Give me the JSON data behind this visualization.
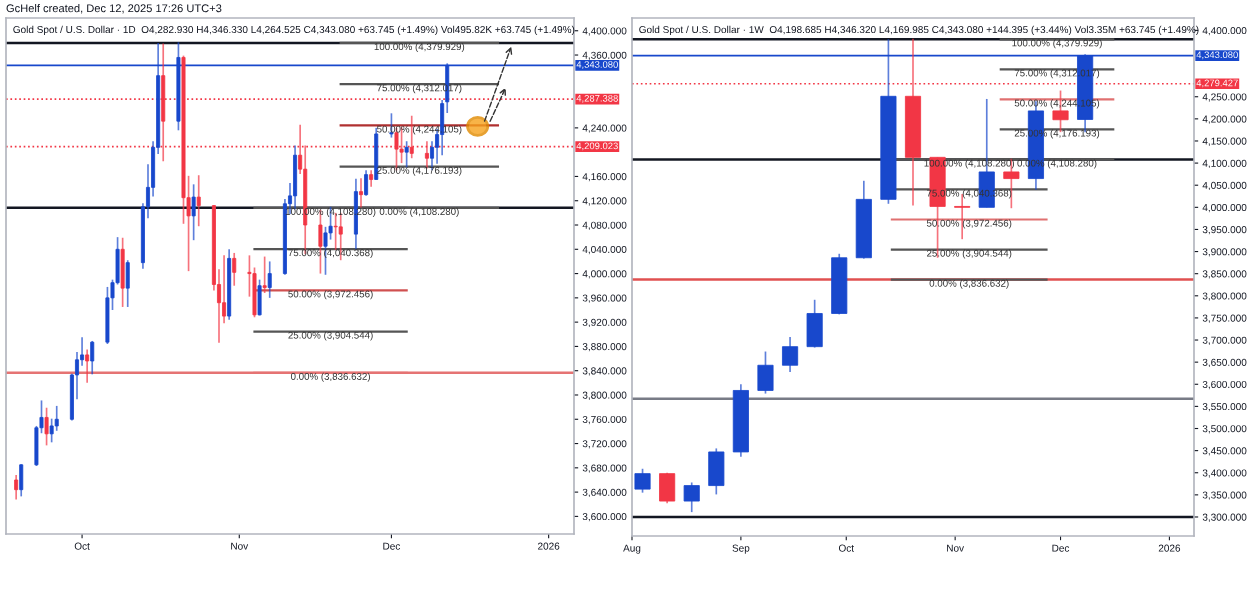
{
  "chart_data": [
    {
      "type": "candlestick",
      "title": "Gold Spot / U.S. Dollar · 1D  O4,282.930 H4,346.330 L4,264.525 C4,343.080 +63.745 (+1.49%) Vol495.82K +63.745 (+1.49%)",
      "annotations": [
        "GcHelf created, Dec 12, 2025 17:26 UTC+3"
      ],
      "x": [
        "2025-09-18",
        "2025-09-19",
        "2025-09-22",
        "2025-09-23",
        "2025-09-24",
        "2025-09-25",
        "2025-09-26",
        "2025-09-29",
        "2025-09-30",
        "2025-10-01",
        "2025-10-02",
        "2025-10-03",
        "2025-10-06",
        "2025-10-07",
        "2025-10-08",
        "2025-10-09",
        "2025-10-10",
        "2025-10-13",
        "2025-10-14",
        "2025-10-15",
        "2025-10-16",
        "2025-10-17",
        "2025-10-20",
        "2025-10-21",
        "2025-10-22",
        "2025-10-23",
        "2025-10-24",
        "2025-10-27",
        "2025-10-28",
        "2025-10-29",
        "2025-10-30",
        "2025-10-31",
        "2025-11-03",
        "2025-11-04",
        "2025-11-05",
        "2025-11-06",
        "2025-11-07",
        "2025-11-10",
        "2025-11-11",
        "2025-11-12",
        "2025-11-13",
        "2025-11-14",
        "2025-11-17",
        "2025-11-18",
        "2025-11-19",
        "2025-11-20",
        "2025-11-21",
        "2025-11-24",
        "2025-11-25",
        "2025-11-26",
        "2025-11-27",
        "2025-11-28",
        "2025-12-01",
        "2025-12-02",
        "2025-12-03",
        "2025-12-04",
        "2025-12-05",
        "2025-12-08",
        "2025-12-09",
        "2025-12-10",
        "2025-12-11",
        "2025-12-12"
      ],
      "ohlc": [
        [
          3660,
          3668,
          3628,
          3644
        ],
        [
          3644,
          3686,
          3633,
          3685
        ],
        [
          3685,
          3749,
          3683,
          3746
        ],
        [
          3746,
          3791,
          3737,
          3763
        ],
        [
          3763,
          3779,
          3717,
          3736
        ],
        [
          3736,
          3761,
          3722,
          3749
        ],
        [
          3749,
          3782,
          3741,
          3760
        ],
        [
          3760,
          3835,
          3758,
          3833
        ],
        [
          3833,
          3871,
          3793,
          3858
        ],
        [
          3858,
          3895,
          3848,
          3866
        ],
        [
          3866,
          3875,
          3820,
          3856
        ],
        [
          3856,
          3889,
          3834,
          3887
        ],
        [
          3887,
          3978,
          3884,
          3960
        ],
        [
          3960,
          3990,
          3940,
          3985
        ],
        [
          3985,
          4060,
          3982,
          4040
        ],
        [
          4040,
          4059,
          3945,
          3976
        ],
        [
          3976,
          4022,
          3945,
          4018
        ],
        [
          4018,
          4116,
          4008,
          4110
        ],
        [
          4110,
          4180,
          4091,
          4142
        ],
        [
          4142,
          4218,
          4127,
          4208
        ],
        [
          4208,
          4380,
          4197,
          4326
        ],
        [
          4326,
          4379,
          4185,
          4251
        ],
        [
          4251,
          4381,
          4236,
          4356
        ],
        [
          4356,
          4359,
          4082,
          4125
        ],
        [
          4125,
          4161,
          4004,
          4095
        ],
        [
          4095,
          4147,
          4055,
          4126
        ],
        [
          4126,
          4162,
          4078,
          4112
        ],
        [
          4112,
          4113,
          3972,
          3982
        ],
        [
          3982,
          4007,
          3886,
          3952
        ],
        [
          3952,
          4030,
          3918,
          3930
        ],
        [
          3930,
          4040,
          3924,
          4025
        ],
        [
          4025,
          4034,
          3980,
          4002
        ],
        [
          4002,
          4030,
          3962,
          4000
        ],
        [
          4000,
          4010,
          3928,
          3932
        ],
        [
          3932,
          3990,
          3931,
          3980
        ],
        [
          3980,
          4028,
          3968,
          3977
        ],
        [
          3977,
          4020,
          3960,
          4000
        ],
        [
          4000,
          4123,
          3998,
          4115
        ],
        [
          4115,
          4149,
          4098,
          4128
        ],
        [
          4128,
          4211,
          4106,
          4195
        ],
        [
          4195,
          4245,
          4164,
          4172
        ],
        [
          4172,
          4211,
          4032,
          4080
        ],
        [
          4080,
          4105,
          4000,
          4045
        ],
        [
          4045,
          4077,
          3998,
          4067
        ],
        [
          4067,
          4110,
          4056,
          4078
        ],
        [
          4078,
          4100,
          4039,
          4077
        ],
        [
          4077,
          4100,
          4022,
          4065
        ],
        [
          4065,
          4156,
          4040,
          4135
        ],
        [
          4135,
          4157,
          4109,
          4130
        ],
        [
          4130,
          4170,
          4128,
          4163
        ],
        [
          4163,
          4170,
          4143,
          4155
        ],
        [
          4155,
          4240,
          4155,
          4230
        ],
        [
          4230,
          4264,
          4224,
          4232
        ],
        [
          4232,
          4240,
          4170,
          4205
        ],
        [
          4205,
          4241,
          4182,
          4200
        ],
        [
          4200,
          4218,
          4175,
          4208
        ],
        [
          4208,
          4260,
          4190,
          4198
        ],
        [
          4198,
          4218,
          4173,
          4190
        ],
        [
          4190,
          4218,
          4170,
          4208
        ],
        [
          4208,
          4238,
          4181,
          4229
        ],
        [
          4229,
          4286,
          4195,
          4280
        ],
        [
          4282.93,
          4346.33,
          4264.525,
          4343.08
        ]
      ],
      "colors": [
        "#f23645",
        "#1848cc",
        "#1848cc",
        "#1848cc",
        "#f23645",
        "#1848cc",
        "#1848cc",
        "#1848cc",
        "#1848cc",
        "#1848cc",
        "#f23645",
        "#1848cc",
        "#1848cc",
        "#1848cc",
        "#1848cc",
        "#f23645",
        "#1848cc",
        "#1848cc",
        "#1848cc",
        "#1848cc",
        "#1848cc",
        "#f23645",
        "#1848cc",
        "#f23645",
        "#f23645",
        "#1848cc",
        "#f23645",
        "#f23645",
        "#f23645",
        "#f23645",
        "#1848cc",
        "#f23645",
        "#f23645",
        "#f23645",
        "#1848cc",
        "#f23645",
        "#1848cc",
        "#1848cc",
        "#1848cc",
        "#1848cc",
        "#f23645",
        "#f23645",
        "#f23645",
        "#1848cc",
        "#1848cc",
        "#f23645",
        "#f23645",
        "#1848cc",
        "#f23645",
        "#1848cc",
        "#f23645",
        "#1848cc",
        "#1848cc",
        "#f23645",
        "#f23645",
        "#1848cc",
        "#f23645",
        "#f23645",
        "#1848cc",
        "#1848cc",
        "#1848cc",
        "#1848cc"
      ],
      "xlim": [
        "2025-09-16",
        "2026-01-06"
      ],
      "xticks": [
        {
          "value": "2025-10-01",
          "label": "Oct"
        },
        {
          "value": "2025-11-01",
          "label": "Nov"
        },
        {
          "value": "2025-12-01",
          "label": "Dec"
        },
        {
          "value": "2026-01-01",
          "label": "2026"
        }
      ],
      "ylim": [
        3571,
        4421
      ],
      "yticks": [
        {
          "value": 3600,
          "label": "3,600.000"
        },
        {
          "value": 3640,
          "label": "3,640.000"
        },
        {
          "value": 3680,
          "label": "3,680.000"
        },
        {
          "value": 3720,
          "label": "3,720.000"
        },
        {
          "value": 3760,
          "label": "3,760.000"
        },
        {
          "value": 3800,
          "label": "3,800.000"
        },
        {
          "value": 3840,
          "label": "3,840.000"
        },
        {
          "value": 3880,
          "label": "3,880.000"
        },
        {
          "value": 3920,
          "label": "3,920.000"
        },
        {
          "value": 3960,
          "label": "3,960.000"
        },
        {
          "value": 4000,
          "label": "4,000.000"
        },
        {
          "value": 4040,
          "label": "4,040.000"
        },
        {
          "value": 4080,
          "label": "4,080.000"
        },
        {
          "value": 4120,
          "label": "4,120.000"
        },
        {
          "value": 4160,
          "label": "4,160.000"
        },
        {
          "value": 4240,
          "label": "4,240.000"
        },
        {
          "value": 4360,
          "label": "4,360.000"
        },
        {
          "value": 4400,
          "label": "4,400.000"
        }
      ],
      "ref_lines": [
        {
          "axis": "y",
          "value": 4379.929,
          "label": null,
          "color": "#131722",
          "line_style": "solid"
        },
        {
          "axis": "y",
          "value": 4108.28,
          "label": null,
          "color": "#131722",
          "line_style": "solid"
        },
        {
          "axis": "y",
          "value": 3836.632,
          "label": null,
          "color": "#e57373",
          "line_style": "solid"
        },
        {
          "axis": "y",
          "value": 4343.08,
          "label": "4,343.080",
          "color": "#1848cc",
          "line_style": "solid"
        },
        {
          "axis": "y",
          "value": 4287.388,
          "label": "4,287.388",
          "color": "#f23645",
          "line_style": "dotted"
        },
        {
          "axis": "y",
          "value": 4209.023,
          "label": "4,209.023",
          "color": "#f23645",
          "line_style": "dotted"
        }
      ],
      "series": [
        {
          "type": "line",
          "name": "100.00% (4,108.280)",
          "color": "#555555",
          "x": [
            "2025-11-04",
            "2025-12-04"
          ],
          "values": [
            4108.28,
            4108.28
          ]
        },
        {
          "type": "line",
          "name": "75.00% (4,040.368)",
          "color": "#555555",
          "x": [
            "2025-11-04",
            "2025-12-04"
          ],
          "values": [
            4040.368,
            4040.368
          ]
        },
        {
          "type": "line",
          "name": "50.00% (3,972.456)",
          "color": "#d05050",
          "x": [
            "2025-11-04",
            "2025-12-04"
          ],
          "values": [
            3972.456,
            3972.456
          ]
        },
        {
          "type": "line",
          "name": "25.00% (3,904.544)",
          "color": "#555555",
          "x": [
            "2025-11-04",
            "2025-12-04"
          ],
          "values": [
            3904.544,
            3904.544
          ]
        },
        {
          "type": "line",
          "name": "0.00% (3,836.632)",
          "color": "#e57373",
          "x": [
            "2025-11-04",
            "2025-12-04"
          ],
          "values": [
            3836.632,
            3836.632
          ]
        },
        {
          "type": "line",
          "name": "100.00% (4,379.929)",
          "color": "#555555",
          "x": [
            "2025-11-21",
            "2025-12-22"
          ],
          "values": [
            4379.929,
            4379.929
          ]
        },
        {
          "type": "line",
          "name": "75.00% (4,312.017)",
          "color": "#555555",
          "x": [
            "2025-11-21",
            "2025-12-22"
          ],
          "values": [
            4312.017,
            4312.017
          ]
        },
        {
          "type": "line",
          "name": "50.00% (4,244.105)",
          "color": "#b03030",
          "x": [
            "2025-11-21",
            "2025-12-22"
          ],
          "values": [
            4244.105,
            4244.105
          ]
        },
        {
          "type": "line",
          "name": "25.00% (4,176.193)",
          "color": "#555555",
          "x": [
            "2025-11-21",
            "2025-12-22"
          ],
          "values": [
            4176.193,
            4176.193
          ]
        },
        {
          "type": "line",
          "name": "0.00% (4,108.280)",
          "color": "#555555",
          "x": [
            "2025-11-21",
            "2025-12-22"
          ],
          "values": [
            4108.28,
            4108.28
          ]
        }
      ]
    },
    {
      "type": "candlestick",
      "title": "Gold Spot / U.S. Dollar · 1W  O4,198.685 H4,346.320 L4,169.985 C4,343.080 +144.395 (+3.44%) Vol3.35M +63.745 (+1.49%)",
      "x": [
        "2025-08-04",
        "2025-08-11",
        "2025-08-18",
        "2025-08-25",
        "2025-09-01",
        "2025-09-08",
        "2025-09-15",
        "2025-09-22",
        "2025-09-29",
        "2025-10-06",
        "2025-10-13",
        "2025-10-20",
        "2025-10-27",
        "2025-11-03",
        "2025-11-10",
        "2025-11-17",
        "2025-11-24",
        "2025-12-01",
        "2025-12-08"
      ],
      "ohlc": [
        [
          3363,
          3409,
          3355,
          3398
        ],
        [
          3398,
          3400,
          3331,
          3336
        ],
        [
          3336,
          3378,
          3311,
          3371
        ],
        [
          3371,
          3455,
          3351,
          3447
        ],
        [
          3447,
          3600,
          3436,
          3586
        ],
        [
          3586,
          3674,
          3579,
          3643
        ],
        [
          3643,
          3707,
          3628,
          3685
        ],
        [
          3685,
          3791,
          3683,
          3760
        ],
        [
          3760,
          3895,
          3758,
          3886
        ],
        [
          3886,
          4060,
          3884,
          4018
        ],
        [
          4018,
          4380,
          4008,
          4251
        ],
        [
          4251,
          4381,
          4004,
          4113
        ],
        [
          4113,
          4113,
          3886,
          4002
        ],
        [
          4002,
          4030,
          3928,
          4000
        ],
        [
          4000,
          4245,
          4000,
          4080
        ],
        [
          4080,
          4110,
          3998,
          4065
        ],
        [
          4065,
          4240,
          4040,
          4218
        ],
        [
          4218,
          4264,
          4170,
          4198
        ],
        [
          4198.685,
          4346.32,
          4169.985,
          4343.08
        ]
      ],
      "colors": [
        "#1848cc",
        "#f23645",
        "#1848cc",
        "#1848cc",
        "#1848cc",
        "#1848cc",
        "#1848cc",
        "#1848cc",
        "#1848cc",
        "#1848cc",
        "#1848cc",
        "#f23645",
        "#f23645",
        "#f23645",
        "#1848cc",
        "#f23645",
        "#1848cc",
        "#f23645",
        "#1848cc"
      ],
      "xlim": [
        "2025-08-01",
        "2026-01-08"
      ],
      "xticks": [
        {
          "value": "2025-08-01",
          "label": "Aug"
        },
        {
          "value": "2025-09-01",
          "label": "Sep"
        },
        {
          "value": "2025-10-01",
          "label": "Oct"
        },
        {
          "value": "2025-11-01",
          "label": "Nov"
        },
        {
          "value": "2025-12-01",
          "label": "Dec"
        },
        {
          "value": "2026-01-01",
          "label": "2026"
        }
      ],
      "ylim": [
        3257,
        4428
      ],
      "yticks": [
        {
          "value": 3300,
          "label": "3,300.000"
        },
        {
          "value": 3350,
          "label": "3,350.000"
        },
        {
          "value": 3400,
          "label": "3,400.000"
        },
        {
          "value": 3450,
          "label": "3,450.000"
        },
        {
          "value": 3500,
          "label": "3,500.000"
        },
        {
          "value": 3550,
          "label": "3,550.000"
        },
        {
          "value": 3600,
          "label": "3,600.000"
        },
        {
          "value": 3650,
          "label": "3,650.000"
        },
        {
          "value": 3700,
          "label": "3,700.000"
        },
        {
          "value": 3750,
          "label": "3,750.000"
        },
        {
          "value": 3800,
          "label": "3,800.000"
        },
        {
          "value": 3850,
          "label": "3,850.000"
        },
        {
          "value": 3900,
          "label": "3,900.000"
        },
        {
          "value": 3950,
          "label": "3,950.000"
        },
        {
          "value": 4000,
          "label": "4,000.000"
        },
        {
          "value": 4050,
          "label": "4,050.000"
        },
        {
          "value": 4100,
          "label": "4,100.000"
        },
        {
          "value": 4150,
          "label": "4,150.000"
        },
        {
          "value": 4200,
          "label": "4,200.000"
        },
        {
          "value": 4250,
          "label": "4,250.000"
        },
        {
          "value": 4400,
          "label": "4,400.000"
        }
      ],
      "ref_lines": [
        {
          "axis": "y",
          "value": 4379.929,
          "label": null,
          "color": "#131722",
          "line_style": "solid"
        },
        {
          "axis": "y",
          "value": 4108.28,
          "label": null,
          "color": "#131722",
          "line_style": "solid"
        },
        {
          "axis": "y",
          "value": 3836.632,
          "label": null,
          "color": "#e05050",
          "line_style": "solid"
        },
        {
          "axis": "y",
          "value": 3567,
          "label": null,
          "color": "#787b86",
          "line_style": "solid"
        },
        {
          "axis": "y",
          "value": 3300,
          "label": null,
          "color": "#131722",
          "line_style": "solid"
        },
        {
          "axis": "y",
          "value": 4343.08,
          "label": "4,343.080",
          "color": "#1848cc",
          "line_style": "solid"
        },
        {
          "axis": "y",
          "value": 4279.427,
          "label": "4,279.427",
          "color": "#f23645",
          "line_style": "dotted"
        }
      ],
      "series": [
        {
          "type": "line",
          "name": "100.00% (4,108.280)",
          "color": "#555555",
          "x": [
            "2025-10-14",
            "2025-11-27"
          ],
          "values": [
            4108.28,
            4108.28
          ]
        },
        {
          "type": "line",
          "name": "75.00% (4,040.368)",
          "color": "#555555",
          "x": [
            "2025-10-14",
            "2025-11-27"
          ],
          "values": [
            4040.368,
            4040.368
          ]
        },
        {
          "type": "line",
          "name": "50.00% (3,972.456)",
          "color": "#e07070",
          "x": [
            "2025-10-14",
            "2025-11-27"
          ],
          "values": [
            3972.456,
            3972.456
          ]
        },
        {
          "type": "line",
          "name": "25.00% (3,904.544)",
          "color": "#555555",
          "x": [
            "2025-10-14",
            "2025-11-27"
          ],
          "values": [
            3904.544,
            3904.544
          ]
        },
        {
          "type": "line",
          "name": "0.00% (3,836.632)",
          "color": "#555555",
          "x": [
            "2025-10-14",
            "2025-11-27"
          ],
          "values": [
            3836.632,
            3836.632
          ]
        },
        {
          "type": "line",
          "name": "100.00% (4,379.929)",
          "color": "#555555",
          "x": [
            "2025-11-14",
            "2025-12-16"
          ],
          "values": [
            4379.929,
            4379.929
          ]
        },
        {
          "type": "line",
          "name": "75.00% (4,312.017)",
          "color": "#555555",
          "x": [
            "2025-11-14",
            "2025-12-16"
          ],
          "values": [
            4312.017,
            4312.017
          ]
        },
        {
          "type": "line",
          "name": "50.00% (4,244.105)",
          "color": "#e07070",
          "x": [
            "2025-11-14",
            "2025-12-16"
          ],
          "values": [
            4244.105,
            4244.105
          ]
        },
        {
          "type": "line",
          "name": "25.00% (4,176.193)",
          "color": "#555555",
          "x": [
            "2025-11-14",
            "2025-12-16"
          ],
          "values": [
            4176.193,
            4176.193
          ]
        },
        {
          "type": "line",
          "name": "0.00% (4,108.280)",
          "color": "#555555",
          "x": [
            "2025-11-14",
            "2025-12-16"
          ],
          "values": [
            4108.28,
            4108.28
          ]
        }
      ]
    }
  ]
}
